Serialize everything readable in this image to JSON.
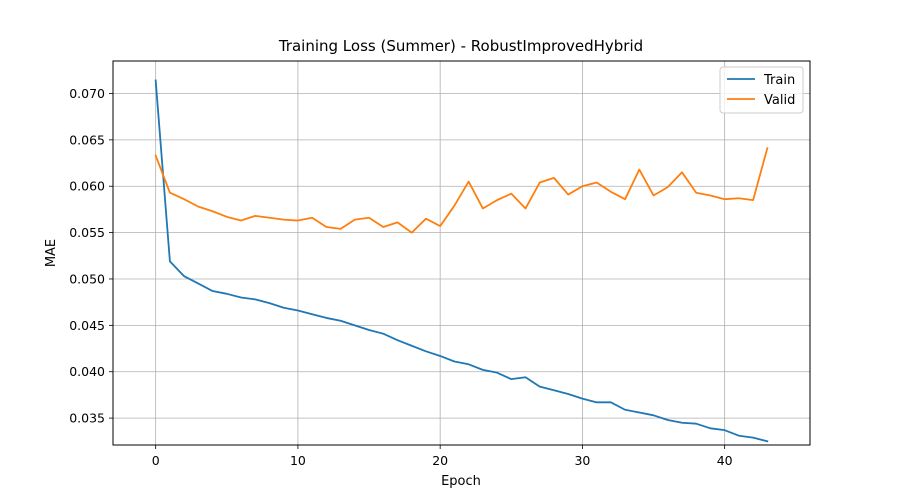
{
  "chart_data": {
    "type": "line",
    "title": "Training Loss (Summer) - RobustImprovedHybrid",
    "xlabel": "Epoch",
    "ylabel": "MAE",
    "xlim": [
      -3,
      46
    ],
    "ylim": [
      0.0321,
      0.0735
    ],
    "xticks": [
      0,
      10,
      20,
      30,
      40
    ],
    "yticks": [
      0.035,
      0.04,
      0.045,
      0.05,
      0.055,
      0.06,
      0.065,
      0.07
    ],
    "grid": true,
    "legend": "top-right",
    "x": [
      0,
      1,
      2,
      3,
      4,
      5,
      6,
      7,
      8,
      9,
      10,
      11,
      12,
      13,
      14,
      15,
      16,
      17,
      18,
      19,
      20,
      21,
      22,
      23,
      24,
      25,
      26,
      27,
      28,
      29,
      30,
      31,
      32,
      33,
      34,
      35,
      36,
      37,
      38,
      39,
      40,
      41,
      42,
      43
    ],
    "series": [
      {
        "name": "Train",
        "color": "#1f77b4",
        "values": [
          0.0714,
          0.0519,
          0.0503,
          0.0495,
          0.0487,
          0.0484,
          0.048,
          0.0478,
          0.0474,
          0.0469,
          0.0466,
          0.0462,
          0.0458,
          0.0455,
          0.045,
          0.0445,
          0.0441,
          0.0434,
          0.0428,
          0.0422,
          0.0417,
          0.0411,
          0.0408,
          0.0402,
          0.0399,
          0.0392,
          0.0394,
          0.0384,
          0.038,
          0.0376,
          0.0371,
          0.0367,
          0.0367,
          0.0359,
          0.0356,
          0.0353,
          0.0348,
          0.0345,
          0.0344,
          0.0339,
          0.0337,
          0.0331,
          0.0329,
          0.0325
        ]
      },
      {
        "name": "Valid",
        "color": "#ff7f0e",
        "values": [
          0.0633,
          0.0593,
          0.0586,
          0.0578,
          0.0573,
          0.0567,
          0.0563,
          0.0568,
          0.0566,
          0.0564,
          0.0563,
          0.0566,
          0.0556,
          0.0554,
          0.0564,
          0.0566,
          0.0556,
          0.0561,
          0.055,
          0.0565,
          0.0557,
          0.0579,
          0.0605,
          0.0576,
          0.0585,
          0.0592,
          0.0576,
          0.0604,
          0.0609,
          0.0591,
          0.06,
          0.0604,
          0.0594,
          0.0586,
          0.0618,
          0.059,
          0.0599,
          0.0615,
          0.0593,
          0.059,
          0.0586,
          0.0587,
          0.0585,
          0.0641
        ]
      }
    ]
  }
}
